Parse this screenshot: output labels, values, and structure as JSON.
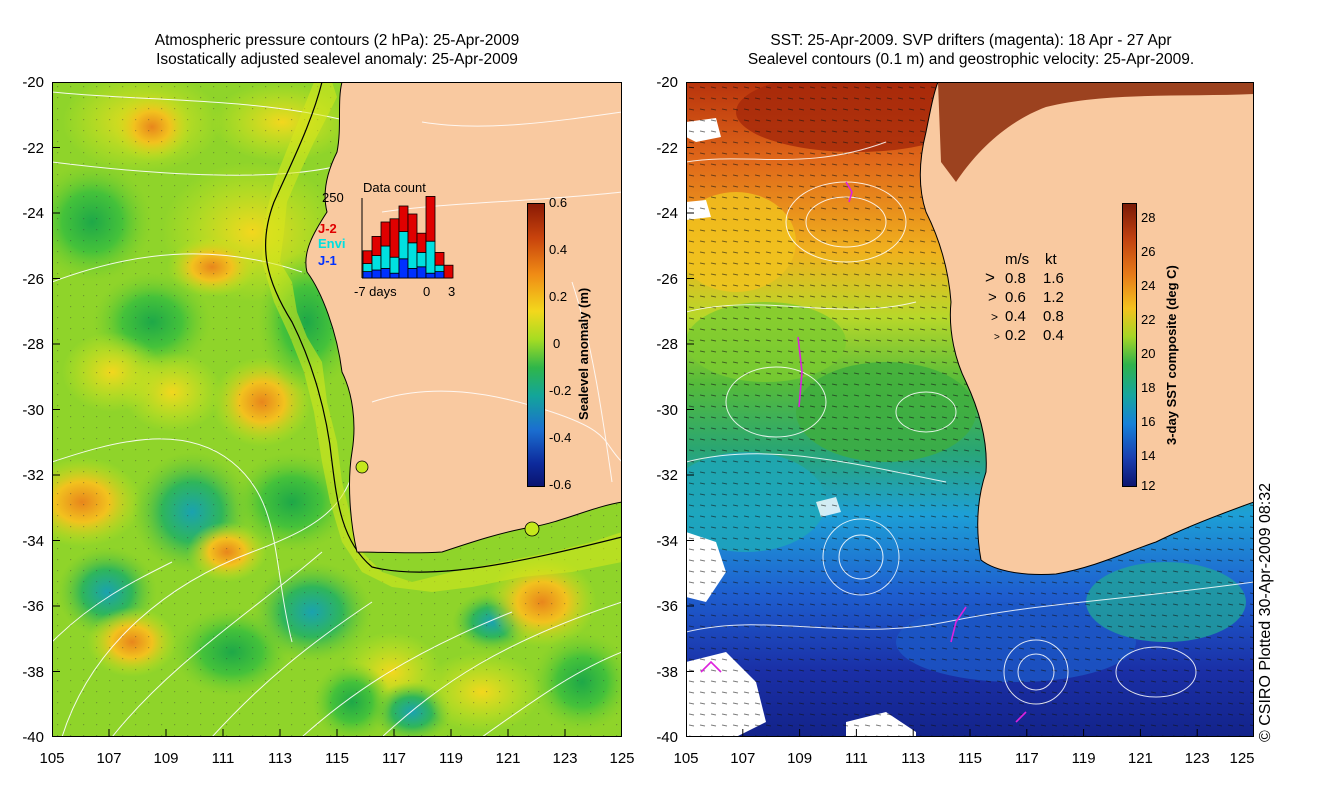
{
  "left_panel": {
    "title_line1": "Atmospheric pressure contours (2 hPa): 25-Apr-2009",
    "title_line2": "Isostatically adjusted sealevel anomaly: 25-Apr-2009",
    "colorbar": {
      "label": "Sealevel anomaly (m)",
      "ticks": [
        "0.6",
        "0.4",
        "0.2",
        "0",
        "-0.2",
        "-0.4",
        "-0.6"
      ]
    },
    "inset": {
      "title": "Data count",
      "ymax_label": "250",
      "xlabel": "-7 days",
      "x_tick_0": "0",
      "x_tick_3": "3",
      "legend": [
        {
          "label": "J-2",
          "color": "#e00000"
        },
        {
          "label": "Envi",
          "color": "#00e0e0"
        },
        {
          "label": "J-1",
          "color": "#0030ff"
        }
      ],
      "bars": [
        {
          "day": -7,
          "j1": 20,
          "envi": 25,
          "j2": 40
        },
        {
          "day": -6,
          "j1": 25,
          "envi": 45,
          "j2": 60
        },
        {
          "day": -5,
          "j1": 30,
          "envi": 70,
          "j2": 75
        },
        {
          "day": -4,
          "j1": 15,
          "envi": 50,
          "j2": 120
        },
        {
          "day": -3,
          "j1": 60,
          "envi": 85,
          "j2": 80
        },
        {
          "day": -2,
          "j1": 30,
          "envi": 80,
          "j2": 90
        },
        {
          "day": -1,
          "j1": 35,
          "envi": 45,
          "j2": 60
        },
        {
          "day": 0,
          "j1": 15,
          "envi": 100,
          "j2": 140
        },
        {
          "day": 1,
          "j1": 20,
          "envi": 20,
          "j2": 40
        },
        {
          "day": 2,
          "j1": 0,
          "envi": 0,
          "j2": 40
        }
      ]
    }
  },
  "right_panel": {
    "title_line1": "SST: 25-Apr-2009. SVP drifters (magenta): 18 Apr - 27 Apr",
    "title_line2": "Sealevel contours (0.1 m) and geostrophic velocity: 25-Apr-2009.",
    "colorbar": {
      "label": "3-day SST composite (deg C)",
      "ticks": [
        "28",
        "26",
        "24",
        "22",
        "20",
        "18",
        "16",
        "14",
        "12"
      ]
    },
    "velocity_legend": {
      "header_ms": "m/s",
      "header_kt": "kt",
      "rows": [
        {
          "ms": "0.8",
          "kt": "1.6"
        },
        {
          "ms": "0.6",
          "kt": "1.2"
        },
        {
          "ms": "0.4",
          "kt": "0.8"
        },
        {
          "ms": "0.2",
          "kt": "0.4"
        }
      ]
    }
  },
  "axes": {
    "lat_ticks": [
      "-20",
      "-22",
      "-24",
      "-26",
      "-28",
      "-30",
      "-32",
      "-34",
      "-36",
      "-38",
      "-40"
    ],
    "lon_ticks": [
      "105",
      "107",
      "109",
      "111",
      "113",
      "115",
      "117",
      "119",
      "121",
      "123",
      "125"
    ]
  },
  "credit": "© CSIRO Plotted 30-Apr-2009 08:32",
  "colors": {
    "land": "#f9c9a0",
    "sla_background": "#9bd81a",
    "sst_warm": "#c2410f",
    "sst_cold": "#16278c"
  }
}
